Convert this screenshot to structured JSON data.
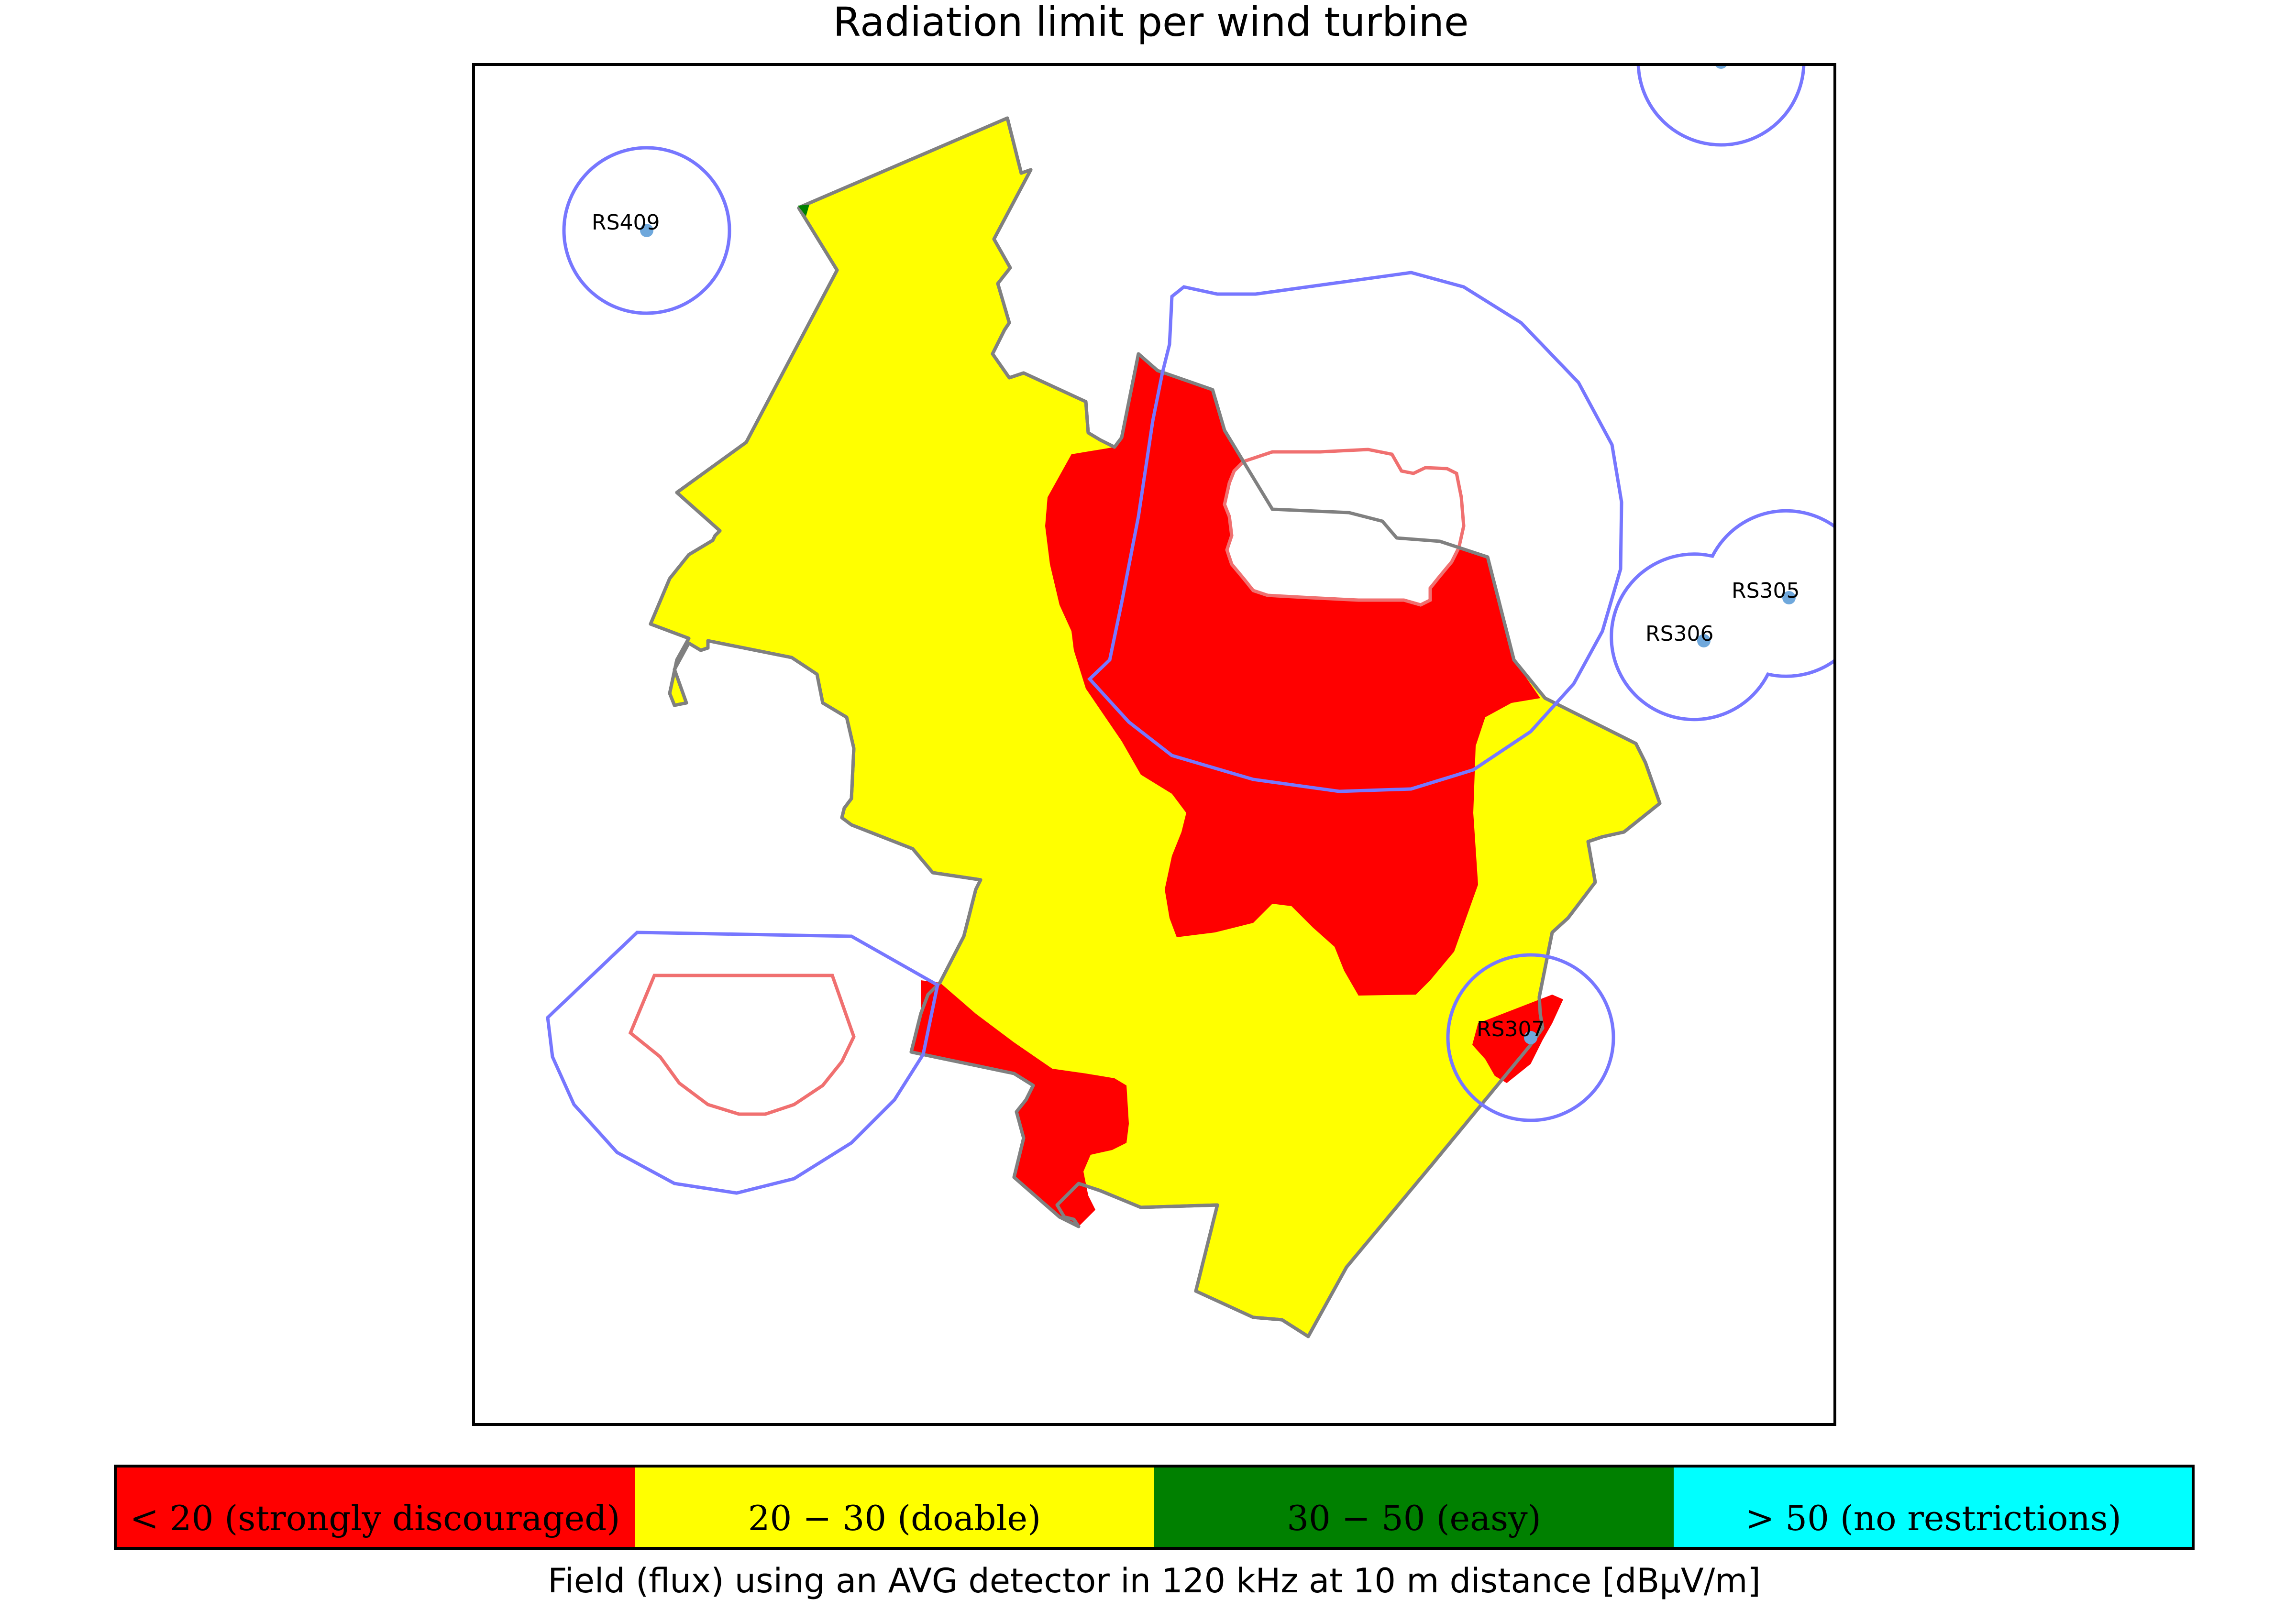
{
  "title": "Radiation limit per wind turbine",
  "stations": [
    {
      "id": "rs409",
      "label": "RS409"
    },
    {
      "id": "rs305",
      "label": "RS305"
    },
    {
      "id": "rs306",
      "label": "RS306"
    },
    {
      "id": "rs307",
      "label": "RS307"
    },
    {
      "id": "top-right",
      "label": ""
    }
  ],
  "colorbar": {
    "categories": [
      {
        "label": "< 20 (strongly discouraged)",
        "color": "#ff0000"
      },
      {
        "label": "20 − 30 (doable)",
        "color": "#ffff00"
      },
      {
        "label": "30 − 50 (easy)",
        "color": "#008000"
      },
      {
        "label": "> 50 (no restrictions)",
        "color": "#00ffff"
      }
    ],
    "caption": "Field (flux) using an AVG detector in 120 kHz at 10 m distance [dBµV/m]"
  },
  "colors": {
    "boundary": "#808080",
    "station_radius": "#7777ff",
    "exclusion": "#f07070",
    "station_marker": "#6fa8dc"
  }
}
